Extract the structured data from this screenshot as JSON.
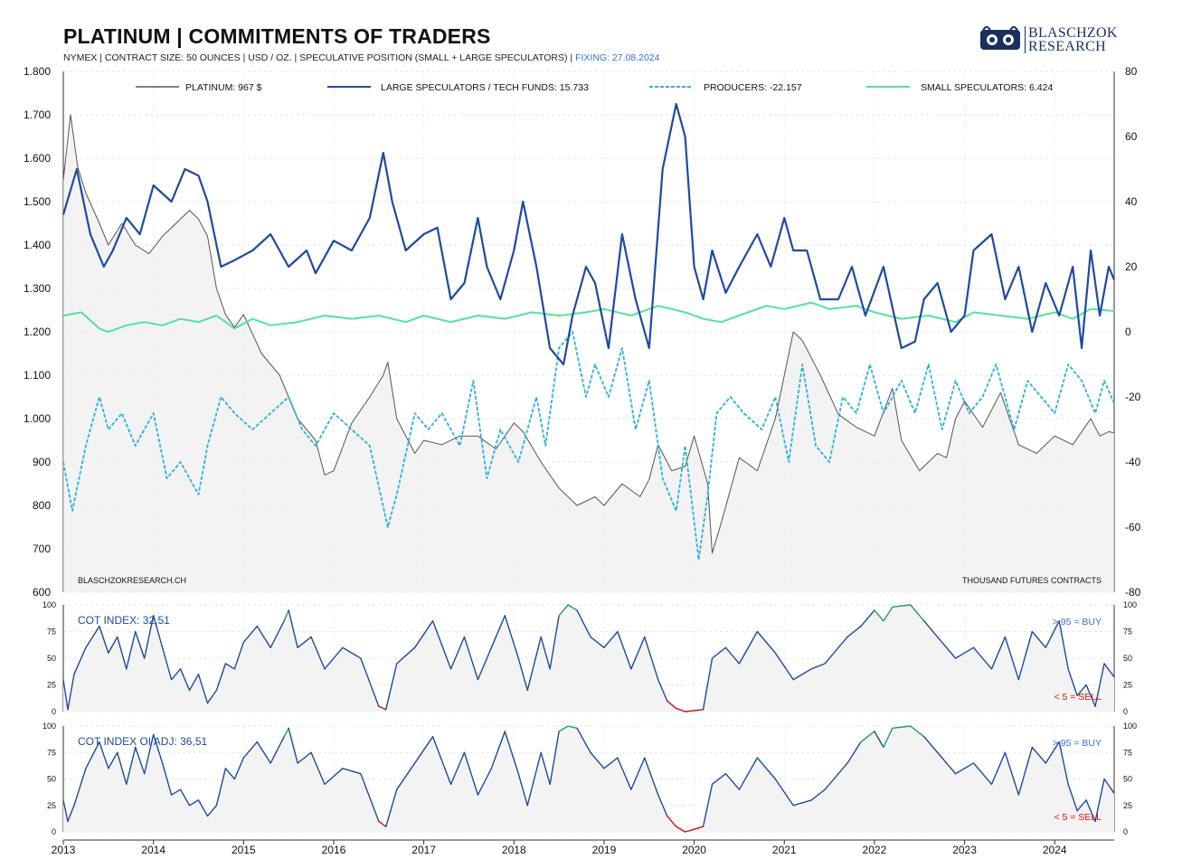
{
  "header": {
    "title": "PLATINUM | COMMITMENTS OF TRADERS",
    "subtitle": "NYMEX | CONTRACT SIZE: 50 OUNCES | USD / OZ. | SPECULATIVE POSITION (SMALL + LARGE SPECULATORS) |",
    "fixing": "FIXING: 27.08.2024"
  },
  "logo": {
    "line1": "BLASCHZOK",
    "line2": "RESEARCH"
  },
  "colors": {
    "price": "#555555",
    "large_speculators": "#1f4aa0",
    "producers": "#2bb0e0",
    "small_speculators": "#55e39a",
    "cot_line": "#1f4aa0",
    "cot_high": "#22a05a",
    "cot_low": "#d11111",
    "fill": "#eeeeee"
  },
  "notes": {
    "source": "BLASCHZOKRESEARCH.CH",
    "units": "THOUSAND  FUTURES  CONTRACTS"
  },
  "chart_data": [
    {
      "type": "line",
      "x_range": [
        2013.0,
        2024.66
      ],
      "xticks": [
        "2013",
        "2014",
        "2015",
        "2016",
        "2017",
        "2018",
        "2019",
        "2020",
        "2021",
        "2022",
        "2023",
        "2024"
      ],
      "y_left": {
        "range": [
          600,
          1800
        ],
        "ticks": [
          "600",
          "700",
          "800",
          "900",
          "1.000",
          "1.100",
          "1.200",
          "1.300",
          "1.400",
          "1.500",
          "1.600",
          "1.700",
          "1.800"
        ]
      },
      "y_right": {
        "range": [
          -80,
          80
        ],
        "ticks": [
          "-80",
          "-60",
          "-40",
          "-20",
          "0",
          "20",
          "40",
          "60",
          "80"
        ]
      },
      "legend": [
        "PLATINUM: 967 $",
        "LARGE SPECULATORS / TECH FUNDS: 15.733",
        "PRODUCERS: -22.157",
        "SMALL SPECULATORS: 6.424"
      ],
      "series": [
        {
          "name": "PLATINUM: 967 $",
          "axis": "left",
          "x": [
            2013.0,
            2013.08,
            2013.16,
            2013.25,
            2013.4,
            2013.5,
            2013.65,
            2013.8,
            2013.95,
            2014.1,
            2014.25,
            2014.4,
            2014.5,
            2014.6,
            2014.7,
            2014.8,
            2014.9,
            2015.0,
            2015.2,
            2015.4,
            2015.6,
            2015.8,
            2015.9,
            2016.0,
            2016.2,
            2016.4,
            2016.55,
            2016.6,
            2016.7,
            2016.9,
            2017.0,
            2017.2,
            2017.4,
            2017.6,
            2017.8,
            2018.0,
            2018.1,
            2018.3,
            2018.5,
            2018.7,
            2018.9,
            2019.0,
            2019.2,
            2019.4,
            2019.5,
            2019.6,
            2019.75,
            2019.9,
            2020.0,
            2020.15,
            2020.2,
            2020.3,
            2020.5,
            2020.7,
            2020.9,
            2021.0,
            2021.1,
            2021.2,
            2021.4,
            2021.6,
            2021.8,
            2022.0,
            2022.2,
            2022.3,
            2022.5,
            2022.7,
            2022.8,
            2022.9,
            2023.0,
            2023.2,
            2023.4,
            2023.6,
            2023.8,
            2024.0,
            2024.2,
            2024.4,
            2024.5,
            2024.6,
            2024.66
          ],
          "y": [
            1550,
            1700,
            1580,
            1520,
            1450,
            1400,
            1450,
            1400,
            1380,
            1420,
            1450,
            1480,
            1460,
            1420,
            1300,
            1240,
            1210,
            1240,
            1150,
            1100,
            1000,
            950,
            870,
            880,
            990,
            1050,
            1100,
            1130,
            1000,
            920,
            950,
            940,
            960,
            960,
            930,
            990,
            970,
            900,
            840,
            800,
            820,
            800,
            850,
            820,
            860,
            940,
            880,
            890,
            960,
            850,
            690,
            760,
            910,
            880,
            1000,
            1100,
            1200,
            1180,
            1100,
            1010,
            980,
            960,
            1070,
            950,
            880,
            920,
            910,
            1000,
            1040,
            980,
            1060,
            940,
            920,
            960,
            940,
            1000,
            960,
            970,
            967
          ]
        },
        {
          "name": "LARGE SPECULATORS / TECH FUNDS: 15.733",
          "axis": "right",
          "x": [
            2013.0,
            2013.15,
            2013.3,
            2013.45,
            2013.55,
            2013.7,
            2013.85,
            2014.0,
            2014.2,
            2014.35,
            2014.5,
            2014.6,
            2014.75,
            2014.9,
            2015.1,
            2015.3,
            2015.5,
            2015.7,
            2015.8,
            2016.0,
            2016.2,
            2016.4,
            2016.55,
            2016.65,
            2016.8,
            2017.0,
            2017.15,
            2017.3,
            2017.45,
            2017.6,
            2017.7,
            2017.85,
            2018.0,
            2018.1,
            2018.25,
            2018.4,
            2018.55,
            2018.65,
            2018.8,
            2018.9,
            2019.05,
            2019.2,
            2019.35,
            2019.5,
            2019.65,
            2019.8,
            2019.9,
            2020.0,
            2020.1,
            2020.2,
            2020.35,
            2020.5,
            2020.7,
            2020.85,
            2021.0,
            2021.1,
            2021.25,
            2021.4,
            2021.6,
            2021.75,
            2021.9,
            2022.1,
            2022.3,
            2022.45,
            2022.55,
            2022.7,
            2022.85,
            2023.0,
            2023.1,
            2023.3,
            2023.45,
            2023.6,
            2023.75,
            2023.9,
            2024.05,
            2024.2,
            2024.3,
            2024.4,
            2024.5,
            2024.6,
            2024.66
          ],
          "y": [
            36,
            50,
            30,
            20,
            25,
            35,
            30,
            45,
            40,
            50,
            48,
            40,
            20,
            22,
            25,
            30,
            20,
            25,
            18,
            28,
            25,
            35,
            55,
            40,
            25,
            30,
            32,
            10,
            15,
            35,
            20,
            10,
            25,
            40,
            20,
            -5,
            -10,
            5,
            20,
            15,
            -5,
            30,
            10,
            -5,
            50,
            70,
            60,
            20,
            10,
            25,
            12,
            20,
            30,
            20,
            35,
            25,
            25,
            10,
            10,
            20,
            5,
            20,
            -5,
            -3,
            10,
            15,
            0,
            5,
            25,
            30,
            10,
            20,
            0,
            15,
            5,
            20,
            -5,
            25,
            5,
            20,
            16
          ]
        },
        {
          "name": "PRODUCERS: -22.157",
          "axis": "right",
          "x": [
            2013.0,
            2013.1,
            2013.25,
            2013.4,
            2013.5,
            2013.65,
            2013.8,
            2014.0,
            2014.15,
            2014.3,
            2014.5,
            2014.6,
            2014.75,
            2014.9,
            2015.1,
            2015.3,
            2015.5,
            2015.65,
            2015.8,
            2016.0,
            2016.2,
            2016.4,
            2016.6,
            2016.7,
            2016.9,
            2017.05,
            2017.2,
            2017.4,
            2017.55,
            2017.7,
            2017.85,
            2018.05,
            2018.25,
            2018.35,
            2018.5,
            2018.65,
            2018.8,
            2018.9,
            2019.05,
            2019.2,
            2019.35,
            2019.5,
            2019.65,
            2019.8,
            2019.9,
            2020.05,
            2020.15,
            2020.25,
            2020.4,
            2020.55,
            2020.75,
            2020.9,
            2021.05,
            2021.2,
            2021.35,
            2021.5,
            2021.65,
            2021.8,
            2021.95,
            2022.1,
            2022.3,
            2022.45,
            2022.6,
            2022.75,
            2022.9,
            2023.05,
            2023.2,
            2023.35,
            2023.55,
            2023.7,
            2023.85,
            2024.0,
            2024.15,
            2024.3,
            2024.45,
            2024.55,
            2024.66
          ],
          "y": [
            -40,
            -55,
            -35,
            -20,
            -30,
            -25,
            -35,
            -25,
            -45,
            -40,
            -50,
            -35,
            -20,
            -25,
            -30,
            -25,
            -20,
            -30,
            -35,
            -25,
            -30,
            -35,
            -60,
            -50,
            -25,
            -30,
            -25,
            -35,
            -15,
            -45,
            -30,
            -40,
            -20,
            -35,
            -5,
            0,
            -20,
            -10,
            -20,
            -5,
            -30,
            -15,
            -45,
            -55,
            -35,
            -70,
            -50,
            -25,
            -20,
            -25,
            -30,
            -20,
            -40,
            -10,
            -35,
            -40,
            -20,
            -25,
            -10,
            -25,
            -15,
            -25,
            -10,
            -30,
            -15,
            -25,
            -20,
            -10,
            -30,
            -15,
            -20,
            -25,
            -10,
            -15,
            -25,
            -15,
            -22
          ]
        },
        {
          "name": "SMALL SPECULATORS: 6.424",
          "axis": "right",
          "x": [
            2013.0,
            2013.2,
            2013.4,
            2013.5,
            2013.7,
            2013.9,
            2014.1,
            2014.3,
            2014.5,
            2014.7,
            2014.9,
            2015.1,
            2015.3,
            2015.6,
            2015.9,
            2016.2,
            2016.5,
            2016.8,
            2017.0,
            2017.3,
            2017.6,
            2017.9,
            2018.2,
            2018.5,
            2018.8,
            2019.0,
            2019.3,
            2019.6,
            2019.9,
            2020.1,
            2020.3,
            2020.5,
            2020.8,
            2021.0,
            2021.3,
            2021.5,
            2021.8,
            2022.0,
            2022.3,
            2022.6,
            2022.9,
            2023.1,
            2023.4,
            2023.7,
            2024.0,
            2024.2,
            2024.4,
            2024.66
          ],
          "y": [
            5,
            6,
            1,
            0,
            2,
            3,
            2,
            4,
            3,
            5,
            1,
            4,
            2,
            3,
            5,
            4,
            5,
            3,
            5,
            3,
            5,
            4,
            6,
            5,
            6,
            7,
            5,
            8,
            6,
            4,
            3,
            5,
            8,
            7,
            9,
            7,
            8,
            6,
            4,
            5,
            3,
            6,
            5,
            4,
            6,
            4,
            7,
            6.4
          ]
        }
      ]
    },
    {
      "type": "line",
      "label": "COT INDEX: 32,51",
      "ylim": [
        0,
        100
      ],
      "yticks": [
        "0",
        "25",
        "50",
        "75",
        "100"
      ],
      "buy_label": "> 95 = BUY",
      "sell_label": "< 5 = SELL",
      "x": [
        2013.0,
        2013.05,
        2013.12,
        2013.25,
        2013.4,
        2013.5,
        2013.6,
        2013.7,
        2013.8,
        2013.9,
        2014.0,
        2014.1,
        2014.2,
        2014.3,
        2014.4,
        2014.5,
        2014.6,
        2014.7,
        2014.8,
        2014.9,
        2015.0,
        2015.15,
        2015.3,
        2015.45,
        2015.5,
        2015.6,
        2015.75,
        2015.9,
        2016.1,
        2016.3,
        2016.5,
        2016.58,
        2016.7,
        2016.9,
        2017.1,
        2017.3,
        2017.45,
        2017.6,
        2017.75,
        2017.9,
        2018.05,
        2018.15,
        2018.3,
        2018.4,
        2018.5,
        2018.6,
        2018.7,
        2018.85,
        2019.0,
        2019.15,
        2019.3,
        2019.45,
        2019.6,
        2019.7,
        2019.8,
        2019.9,
        2020.1,
        2020.2,
        2020.35,
        2020.5,
        2020.7,
        2020.9,
        2021.1,
        2021.3,
        2021.45,
        2021.6,
        2021.7,
        2021.85,
        2022.0,
        2022.1,
        2022.2,
        2022.4,
        2022.55,
        2022.7,
        2022.9,
        2023.1,
        2023.3,
        2023.45,
        2023.6,
        2023.75,
        2023.9,
        2024.05,
        2024.15,
        2024.25,
        2024.35,
        2024.45,
        2024.55,
        2024.66
      ],
      "values": [
        30,
        2,
        35,
        60,
        80,
        55,
        70,
        40,
        75,
        50,
        90,
        60,
        30,
        40,
        20,
        35,
        8,
        20,
        45,
        40,
        65,
        80,
        60,
        85,
        95,
        60,
        70,
        40,
        60,
        50,
        5,
        2,
        45,
        60,
        85,
        40,
        70,
        30,
        60,
        90,
        50,
        20,
        70,
        40,
        90,
        100,
        95,
        70,
        60,
        75,
        40,
        70,
        30,
        10,
        3,
        0,
        2,
        50,
        60,
        45,
        75,
        55,
        30,
        40,
        45,
        60,
        70,
        80,
        95,
        85,
        98,
        100,
        85,
        70,
        50,
        60,
        40,
        70,
        30,
        75,
        60,
        85,
        40,
        15,
        25,
        5,
        45,
        32.5
      ]
    },
    {
      "type": "line",
      "label": "COT INDEX OI ADJ: 36,51",
      "ylim": [
        0,
        100
      ],
      "yticks": [
        "0",
        "25",
        "50",
        "75",
        "100"
      ],
      "buy_label": "> 95 = BUY",
      "sell_label": "< 5 = SELL",
      "x": [
        2013.0,
        2013.05,
        2013.12,
        2013.25,
        2013.4,
        2013.5,
        2013.6,
        2013.7,
        2013.8,
        2013.9,
        2014.0,
        2014.1,
        2014.2,
        2014.3,
        2014.4,
        2014.5,
        2014.6,
        2014.7,
        2014.8,
        2014.9,
        2015.0,
        2015.15,
        2015.3,
        2015.45,
        2015.5,
        2015.6,
        2015.75,
        2015.9,
        2016.1,
        2016.3,
        2016.5,
        2016.58,
        2016.7,
        2016.9,
        2017.1,
        2017.3,
        2017.45,
        2017.6,
        2017.75,
        2017.9,
        2018.05,
        2018.15,
        2018.3,
        2018.4,
        2018.5,
        2018.6,
        2018.7,
        2018.85,
        2019.0,
        2019.15,
        2019.3,
        2019.45,
        2019.6,
        2019.7,
        2019.8,
        2019.9,
        2020.1,
        2020.2,
        2020.35,
        2020.5,
        2020.7,
        2020.9,
        2021.1,
        2021.3,
        2021.45,
        2021.6,
        2021.7,
        2021.85,
        2022.0,
        2022.1,
        2022.2,
        2022.4,
        2022.55,
        2022.7,
        2022.9,
        2023.1,
        2023.3,
        2023.45,
        2023.6,
        2023.75,
        2023.9,
        2024.05,
        2024.15,
        2024.25,
        2024.35,
        2024.45,
        2024.55,
        2024.66
      ],
      "values": [
        30,
        10,
        25,
        60,
        85,
        60,
        75,
        45,
        80,
        55,
        92,
        65,
        35,
        40,
        25,
        30,
        15,
        25,
        60,
        50,
        70,
        85,
        65,
        90,
        98,
        65,
        75,
        45,
        60,
        55,
        10,
        5,
        40,
        65,
        90,
        45,
        75,
        35,
        60,
        95,
        55,
        25,
        75,
        45,
        95,
        100,
        98,
        75,
        60,
        70,
        40,
        70,
        35,
        15,
        5,
        0,
        5,
        45,
        55,
        40,
        70,
        50,
        25,
        30,
        40,
        55,
        65,
        85,
        95,
        80,
        98,
        100,
        90,
        75,
        55,
        65,
        45,
        75,
        35,
        80,
        65,
        85,
        45,
        20,
        30,
        10,
        50,
        36.5
      ]
    }
  ]
}
